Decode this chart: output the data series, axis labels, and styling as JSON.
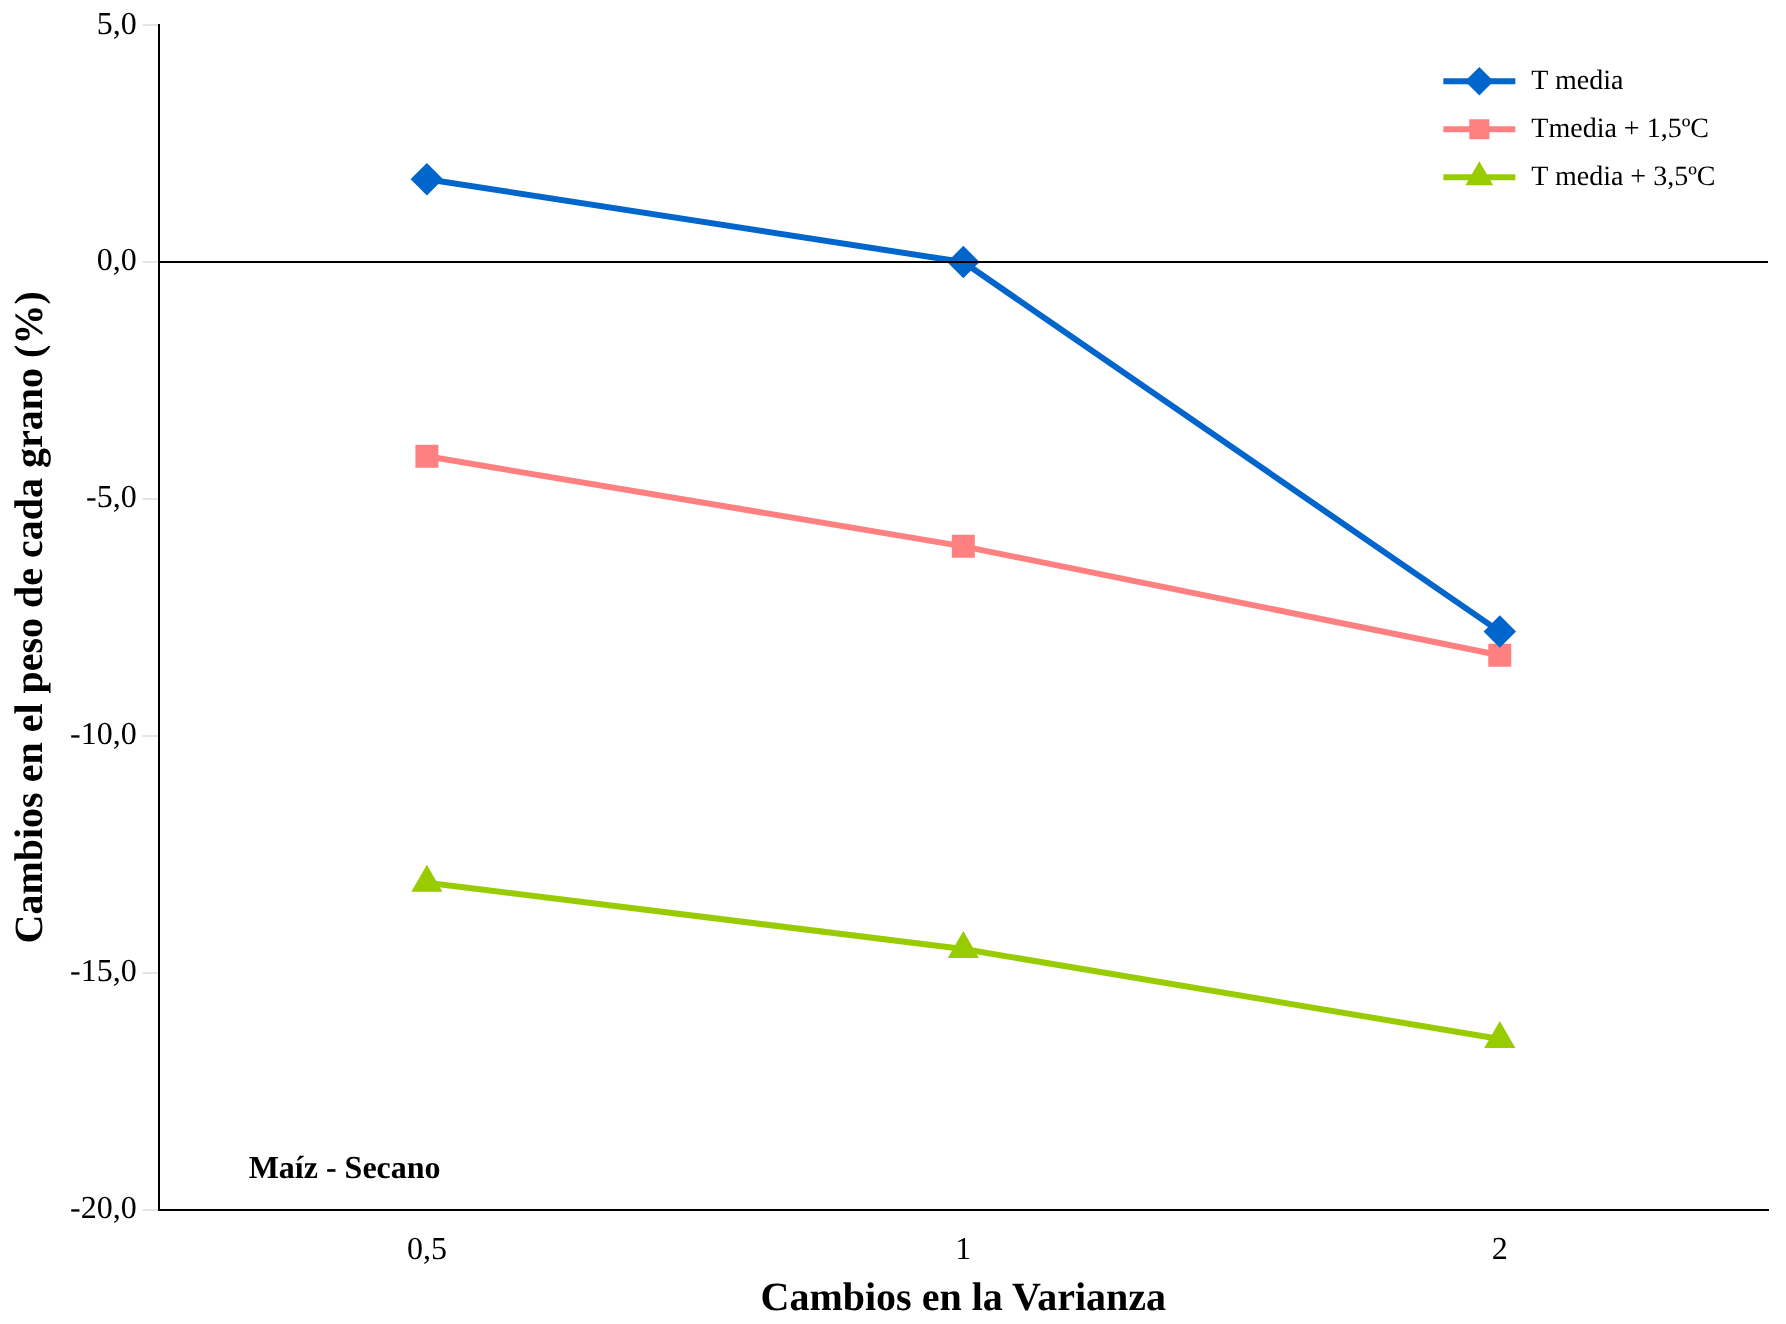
{
  "chart_data": {
    "type": "line",
    "xlabel": "Cambios en la Varianza",
    "ylabel": "Cambios en el peso de cada grano (%)",
    "categories": [
      "0,5",
      "1",
      "2"
    ],
    "series": [
      {
        "name": "T media",
        "color": "#0066cc",
        "marker": "diamond",
        "values": [
          1.75,
          0,
          -7.8
        ]
      },
      {
        "name": "Tmedia + 1,5ºC",
        "color": "#ff8080",
        "marker": "square",
        "values": [
          -4.1,
          -6.0,
          -8.3
        ]
      },
      {
        "name": "T media + 3,5ºC",
        "color": "#99cc00",
        "marker": "triangle",
        "values": [
          -13.1,
          -14.5,
          -16.4
        ]
      }
    ],
    "ylim": [
      -20,
      5
    ],
    "yticks": [
      {
        "value": -20,
        "label": "-20,0"
      },
      {
        "value": -15,
        "label": "-15,0"
      },
      {
        "value": -10,
        "label": "-10,0"
      },
      {
        "value": -5,
        "label": "-5,0"
      },
      {
        "value": 0,
        "label": "0,0"
      },
      {
        "value": 5,
        "label": "5,0"
      }
    ],
    "ref_lines": [
      {
        "axis": "y",
        "value": 0,
        "color": "#000000"
      }
    ],
    "annotations": [
      "Maíz - Secano"
    ],
    "grid": false,
    "legend": "top right"
  }
}
